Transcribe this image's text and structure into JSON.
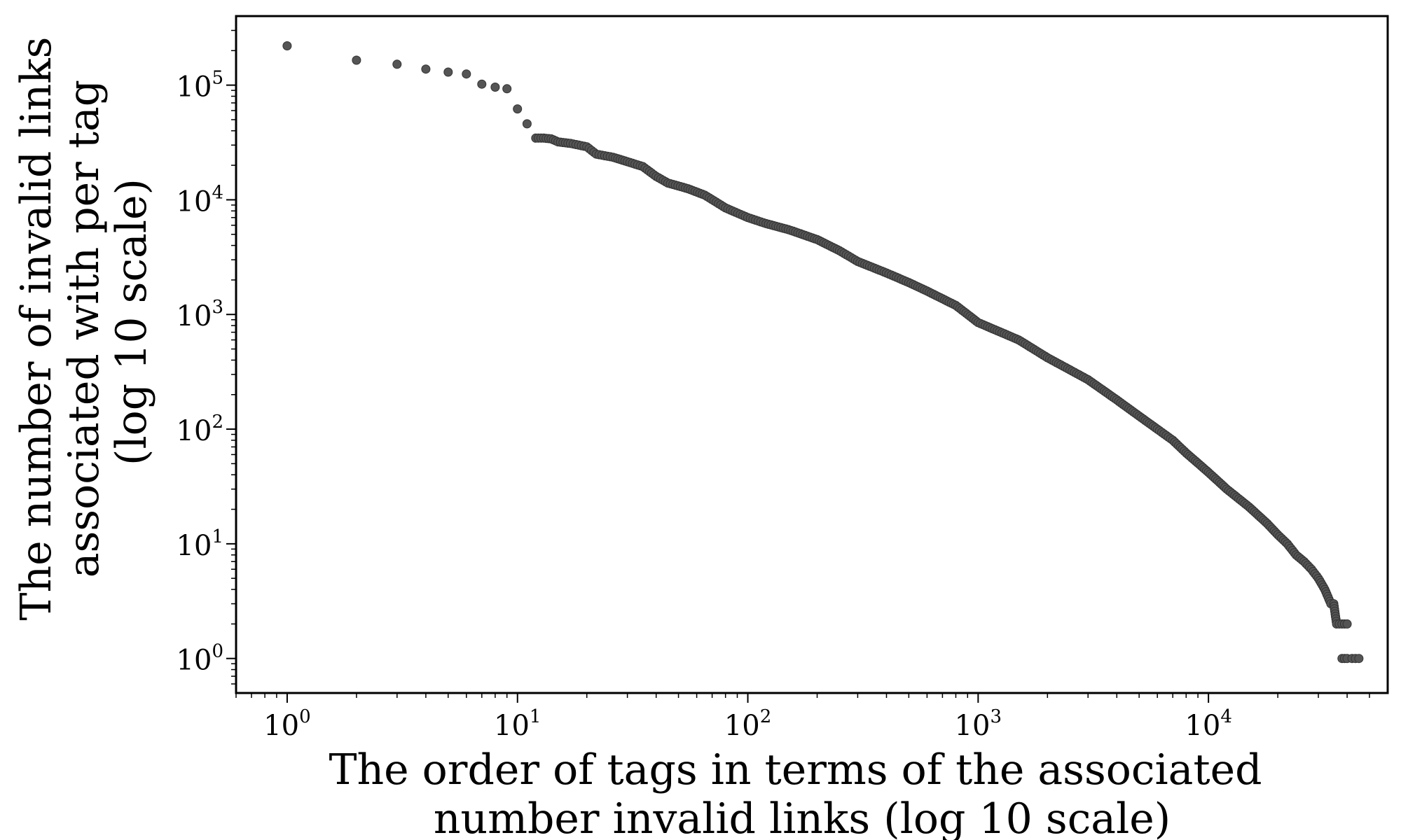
{
  "chart_data": {
    "type": "scatter",
    "xscale": "log",
    "yscale": "log",
    "xlabel_lines": [
      "The order of tags in terms of the associated",
      "number invalid links (log 10 scale)"
    ],
    "ylabel_lines": [
      "The number of invalid links",
      "associated with per tag",
      "(log 10 scale)"
    ],
    "xlim": [
      0.6,
      60000
    ],
    "ylim": [
      0.5,
      400000
    ],
    "xticks": [
      {
        "base": "10",
        "exp": "0",
        "value": 1
      },
      {
        "base": "10",
        "exp": "1",
        "value": 10
      },
      {
        "base": "10",
        "exp": "2",
        "value": 100
      },
      {
        "base": "10",
        "exp": "3",
        "value": 1000
      },
      {
        "base": "10",
        "exp": "4",
        "value": 10000
      }
    ],
    "yticks": [
      {
        "base": "10",
        "exp": "0",
        "value": 1
      },
      {
        "base": "10",
        "exp": "1",
        "value": 10
      },
      {
        "base": "10",
        "exp": "2",
        "value": 100
      },
      {
        "base": "10",
        "exp": "3",
        "value": 1000
      },
      {
        "base": "10",
        "exp": "4",
        "value": 10000
      },
      {
        "base": "10",
        "exp": "5",
        "value": 100000
      }
    ],
    "marker_color": "#555555",
    "series": [
      {
        "points": [
          [
            1,
            220000
          ],
          [
            2,
            165000
          ],
          [
            3,
            152000
          ],
          [
            4,
            138000
          ],
          [
            5,
            130000
          ],
          [
            6,
            125000
          ],
          [
            7,
            102000
          ],
          [
            8,
            96000
          ],
          [
            9,
            93000
          ],
          [
            10,
            62000
          ],
          [
            11,
            46000
          ],
          [
            12,
            34500
          ],
          [
            13,
            34500
          ],
          [
            14,
            34000
          ],
          [
            15,
            32000
          ],
          [
            17,
            31000
          ],
          [
            20,
            29000
          ],
          [
            22,
            25000
          ],
          [
            26,
            23500
          ],
          [
            30,
            21500
          ],
          [
            35,
            19500
          ],
          [
            40,
            16000
          ],
          [
            45,
            14000
          ],
          [
            55,
            12500
          ],
          [
            65,
            11000
          ],
          [
            80,
            8500
          ],
          [
            100,
            7000
          ],
          [
            120,
            6200
          ],
          [
            150,
            5500
          ],
          [
            200,
            4500
          ],
          [
            250,
            3600
          ],
          [
            300,
            2900
          ],
          [
            400,
            2300
          ],
          [
            500,
            1900
          ],
          [
            600,
            1600
          ],
          [
            800,
            1200
          ],
          [
            1000,
            850
          ],
          [
            1500,
            600
          ],
          [
            2000,
            420
          ],
          [
            3000,
            270
          ],
          [
            4000,
            180
          ],
          [
            5000,
            130
          ],
          [
            6000,
            100
          ],
          [
            7000,
            80
          ],
          [
            8000,
            62
          ],
          [
            10000,
            42
          ],
          [
            12000,
            30
          ],
          [
            15000,
            21
          ],
          [
            18000,
            15
          ],
          [
            20000,
            12
          ],
          [
            22000,
            10
          ],
          [
            24000,
            8
          ],
          [
            26000,
            7
          ],
          [
            28000,
            6
          ],
          [
            30000,
            5
          ],
          [
            32000,
            4
          ],
          [
            34000,
            3
          ],
          [
            35000,
            3
          ],
          [
            36000,
            2
          ],
          [
            38000,
            2
          ],
          [
            40000,
            2
          ],
          [
            38000,
            1
          ],
          [
            40000,
            1
          ],
          [
            42000,
            1
          ],
          [
            45000,
            1
          ]
        ]
      }
    ]
  }
}
